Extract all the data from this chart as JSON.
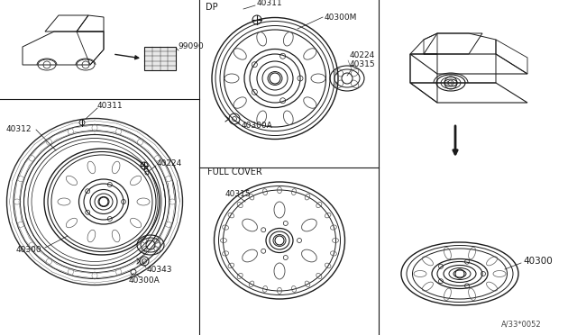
{
  "bg_color": "#ffffff",
  "line_color": "#1a1a1a",
  "diagram_code": "A/33*0052",
  "parts": {
    "left_tire": "40312",
    "left_wheel": "40311",
    "left_center": "40224",
    "left_hub": "40300",
    "left_cap": "40343",
    "left_nut": "40300A",
    "dp_label": "DP",
    "dp_wheel": "40311",
    "dp_rim": "40300M",
    "dp_center": "40224",
    "dp_cap": "40315",
    "dp_nut": "40300A",
    "fc_label": "FULL COVER",
    "fc_cap": "40315",
    "right_hub": "40300",
    "top_sticker": "99090"
  },
  "ts": 6.5
}
